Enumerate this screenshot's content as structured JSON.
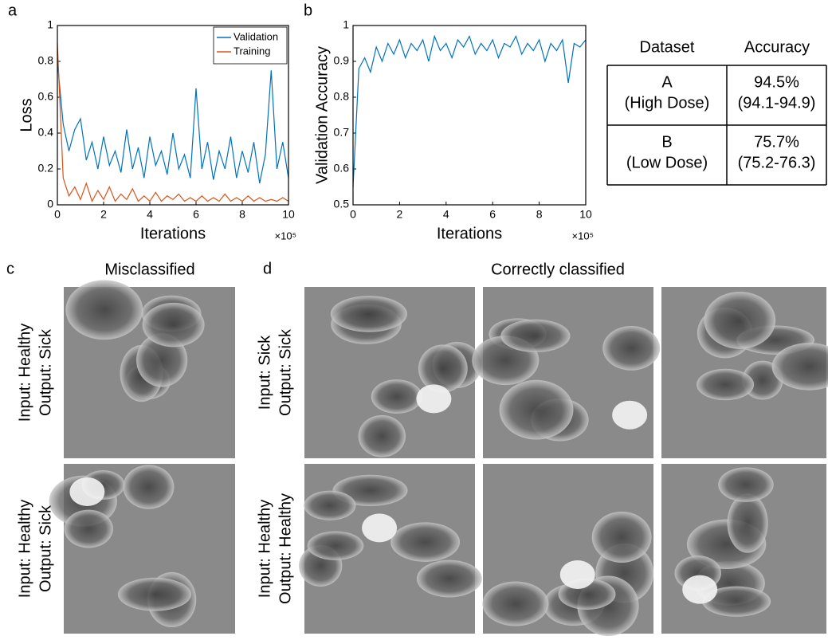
{
  "chart_data": [
    {
      "type": "line",
      "panel_label": "a",
      "xlabel": "Iterations",
      "ylabel": "Loss",
      "x_exponent": "×10⁵",
      "x": [
        0,
        0.25,
        0.5,
        0.75,
        1,
        1.25,
        1.5,
        1.75,
        2,
        2.25,
        2.5,
        2.75,
        3,
        3.25,
        3.5,
        3.75,
        4,
        4.25,
        4.5,
        4.75,
        5,
        5.25,
        5.5,
        5.75,
        6,
        6.25,
        6.5,
        6.75,
        7,
        7.25,
        7.5,
        7.75,
        8,
        8.25,
        8.5,
        8.75,
        9,
        9.25,
        9.5,
        9.75,
        10
      ],
      "series": [
        {
          "name": "Validation",
          "color": "#0072bd",
          "values": [
            0.8,
            0.45,
            0.3,
            0.42,
            0.48,
            0.25,
            0.35,
            0.2,
            0.38,
            0.22,
            0.3,
            0.18,
            0.42,
            0.2,
            0.32,
            0.15,
            0.38,
            0.22,
            0.3,
            0.17,
            0.4,
            0.2,
            0.28,
            0.15,
            0.65,
            0.2,
            0.35,
            0.14,
            0.3,
            0.2,
            0.38,
            0.15,
            0.3,
            0.18,
            0.35,
            0.12,
            0.28,
            0.75,
            0.2,
            0.35,
            0.15
          ]
        },
        {
          "name": "Training",
          "color": "#d95319",
          "values": [
            0.9,
            0.15,
            0.05,
            0.1,
            0.03,
            0.12,
            0.02,
            0.08,
            0.03,
            0.1,
            0.02,
            0.06,
            0.03,
            0.09,
            0.02,
            0.05,
            0.02,
            0.07,
            0.02,
            0.05,
            0.03,
            0.06,
            0.02,
            0.04,
            0.02,
            0.05,
            0.02,
            0.04,
            0.02,
            0.06,
            0.02,
            0.04,
            0.02,
            0.05,
            0.02,
            0.04,
            0.02,
            0.03,
            0.02,
            0.04,
            0.02
          ]
        }
      ],
      "xlim": [
        0,
        10
      ],
      "xticks": [
        0,
        2,
        4,
        6,
        8,
        10
      ],
      "ylim": [
        0,
        1
      ],
      "yticks": [
        0,
        0.2,
        0.4,
        0.6,
        0.8,
        1
      ],
      "legend": "top-right"
    },
    {
      "type": "line",
      "panel_label": "b",
      "xlabel": "Iterations",
      "ylabel": "Validation Accuracy",
      "x_exponent": "×10⁵",
      "x": [
        0,
        0.25,
        0.5,
        0.75,
        1,
        1.25,
        1.5,
        1.75,
        2,
        2.25,
        2.5,
        2.75,
        3,
        3.25,
        3.5,
        3.75,
        4,
        4.25,
        4.5,
        4.75,
        5,
        5.25,
        5.5,
        5.75,
        6,
        6.25,
        6.5,
        6.75,
        7,
        7.25,
        7.5,
        7.75,
        8,
        8.25,
        8.5,
        8.75,
        9,
        9.25,
        9.5,
        9.75,
        10
      ],
      "series": [
        {
          "color": "#0072bd",
          "values": [
            0.55,
            0.88,
            0.91,
            0.87,
            0.94,
            0.9,
            0.95,
            0.92,
            0.96,
            0.91,
            0.95,
            0.93,
            0.96,
            0.9,
            0.97,
            0.93,
            0.95,
            0.91,
            0.96,
            0.94,
            0.97,
            0.92,
            0.95,
            0.93,
            0.96,
            0.91,
            0.95,
            0.94,
            0.97,
            0.92,
            0.95,
            0.93,
            0.96,
            0.9,
            0.95,
            0.93,
            0.96,
            0.84,
            0.95,
            0.94,
            0.96
          ]
        }
      ],
      "xlim": [
        0,
        10
      ],
      "xticks": [
        0,
        2,
        4,
        6,
        8,
        10
      ],
      "ylim": [
        0.5,
        1
      ],
      "yticks": [
        0.5,
        0.6,
        0.7,
        0.8,
        0.9,
        1
      ]
    }
  ],
  "table": {
    "header": [
      "Dataset",
      "Accuracy"
    ],
    "rows": [
      [
        [
          "A",
          "(High Dose)"
        ],
        [
          "94.5%",
          "(94.1-94.9)"
        ]
      ],
      [
        [
          "B",
          "(Low Dose)"
        ],
        [
          "75.7%",
          "(75.2-76.3)"
        ]
      ]
    ]
  },
  "images": {
    "left": {
      "panel_label": "c",
      "title": "Misclassified",
      "rows": [
        [
          "Input: Healthy",
          "Output: Sick"
        ],
        [
          "Input: Healthy",
          "Output: Sick"
        ]
      ]
    },
    "right": {
      "panel_label": "d",
      "title": "Correctly classified",
      "rows": [
        [
          "Input: Sick",
          "Output: Sick"
        ],
        [
          "Input: Healthy",
          "Output: Healthy"
        ]
      ]
    }
  }
}
